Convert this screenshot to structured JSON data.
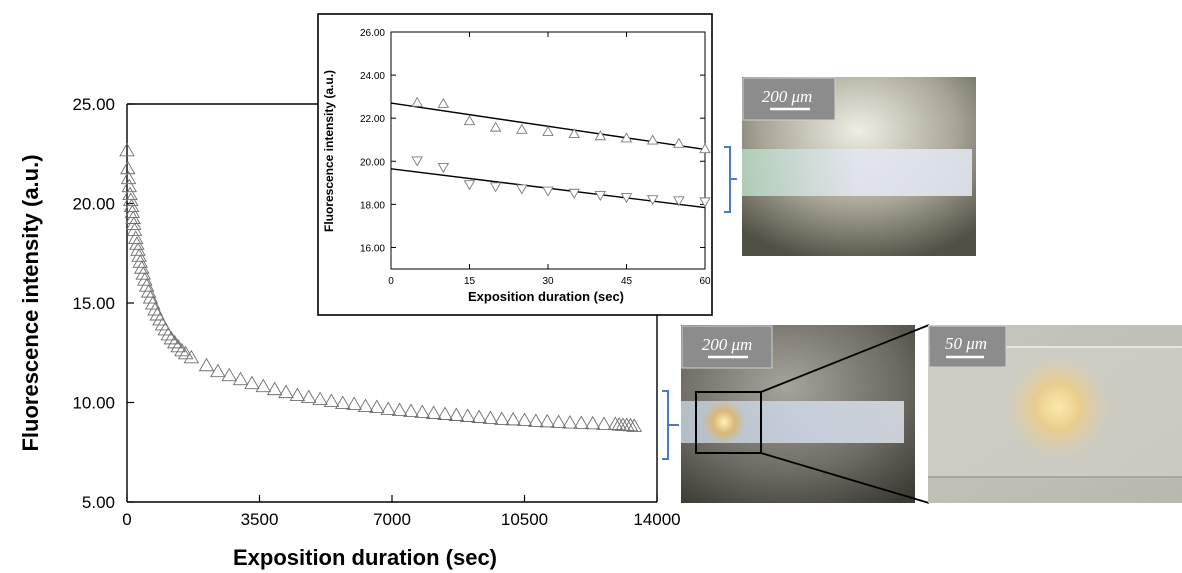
{
  "chart_data": [
    {
      "type": "scatter",
      "panel": "main",
      "xlabel": "Exposition duration (sec)",
      "ylabel": "Fluorescence intensity (a.u.)",
      "xlim": [
        0,
        14000
      ],
      "ylim": [
        5,
        25
      ],
      "xticks": [
        "0",
        "3500",
        "7000",
        "10500",
        "14000"
      ],
      "yticks": [
        "5.00",
        "10.00",
        "15.00",
        "20.00",
        "25.00"
      ],
      "marker": "triangle-up-open",
      "grid": false,
      "series": [
        {
          "x": [
            0,
            20,
            40,
            60,
            80,
            100,
            120,
            140,
            160,
            180,
            200,
            230,
            260,
            290,
            320,
            350,
            390,
            430,
            470,
            520,
            570,
            620,
            680,
            740,
            800,
            870,
            940,
            1010,
            1090,
            1170,
            1260,
            1350,
            1450,
            1550,
            1700,
            2100,
            2400,
            2700,
            3000,
            3300,
            3600,
            3900,
            4200,
            4500,
            4800,
            5100,
            5400,
            5700,
            6000,
            6300,
            6600,
            6900,
            7200,
            7500,
            7800,
            8100,
            8400,
            8700,
            9000,
            9300,
            9600,
            9900,
            10200,
            10500,
            10800,
            11100,
            11400,
            11700,
            12000,
            12300,
            12600,
            12900,
            13000,
            13100,
            13200,
            13300,
            13400
          ],
          "y": [
            22.7,
            21.8,
            21.3,
            20.9,
            20.5,
            20.2,
            19.9,
            19.6,
            19.3,
            19.0,
            18.7,
            18.3,
            18.0,
            17.7,
            17.4,
            17.1,
            16.8,
            16.5,
            16.2,
            15.9,
            15.6,
            15.3,
            15.0,
            14.7,
            14.45,
            14.2,
            13.95,
            13.7,
            13.45,
            13.25,
            13.05,
            12.85,
            12.65,
            12.5,
            12.3,
            11.9,
            11.6,
            11.4,
            11.2,
            11.0,
            10.85,
            10.7,
            10.55,
            10.4,
            10.3,
            10.2,
            10.1,
            10.0,
            9.95,
            9.85,
            9.8,
            9.7,
            9.65,
            9.6,
            9.55,
            9.5,
            9.45,
            9.4,
            9.35,
            9.3,
            9.25,
            9.2,
            9.18,
            9.15,
            9.1,
            9.08,
            9.05,
            9.02,
            9.0,
            8.98,
            8.95,
            8.95,
            8.92,
            8.9,
            8.9,
            8.88,
            8.85
          ]
        }
      ]
    },
    {
      "type": "scatter",
      "panel": "inset",
      "xlabel": "Exposition duration (sec)",
      "ylabel": "Fluorescence intensity (a.u.)",
      "xlim": [
        0,
        60
      ],
      "ylim": [
        15,
        26
      ],
      "xticks": [
        "0",
        "15",
        "30",
        "45",
        "60"
      ],
      "yticks": [
        "16.00",
        "18.00",
        "20.00",
        "22.00",
        "24.00",
        "26.00"
      ],
      "grid": false,
      "series": [
        {
          "marker": "triangle-up-open",
          "x": [
            5,
            10,
            15,
            20,
            25,
            30,
            35,
            40,
            45,
            50,
            55,
            60
          ],
          "y": [
            22.75,
            22.7,
            21.9,
            21.6,
            21.5,
            21.4,
            21.3,
            21.2,
            21.1,
            21.0,
            20.85,
            20.6
          ],
          "fit": [
            22.7,
            20.55
          ]
        },
        {
          "marker": "triangle-down-open",
          "x": [
            5,
            10,
            15,
            20,
            25,
            30,
            35,
            40,
            45,
            50,
            55,
            60
          ],
          "y": [
            20.0,
            19.7,
            18.9,
            18.8,
            18.7,
            18.6,
            18.5,
            18.4,
            18.3,
            18.2,
            18.15,
            18.1
          ],
          "fit": [
            19.65,
            17.85
          ]
        }
      ]
    }
  ],
  "micrographs": [
    {
      "scale_label": "200 μm"
    },
    {
      "scale_label": "200 μm"
    },
    {
      "scale_label": "50 μm"
    }
  ],
  "colors": {
    "bracket": "#4a7bc8"
  }
}
